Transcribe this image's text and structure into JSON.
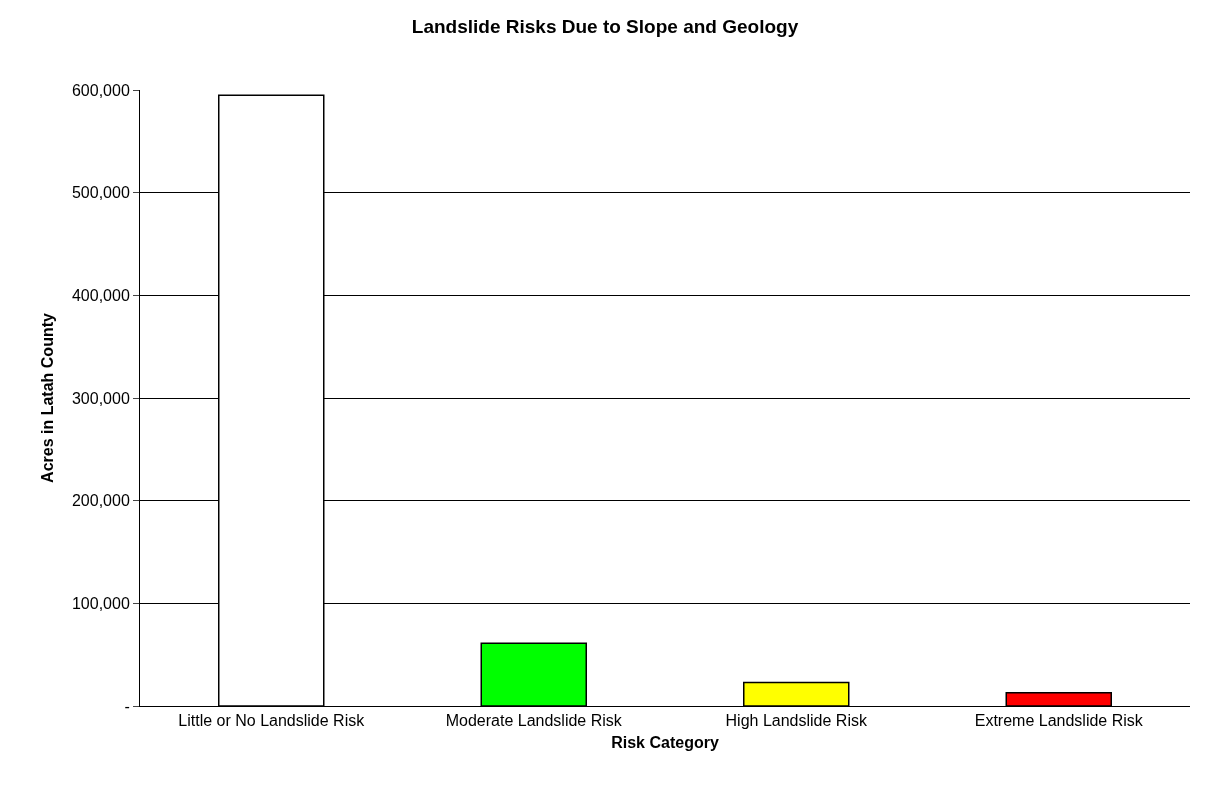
{
  "chart_data": {
    "type": "bar",
    "title": "Landslide Risks Due to Slope and Geology",
    "xlabel": "Risk Category",
    "ylabel": "Acres in Latah County",
    "categories": [
      "Little or No Landslide Risk",
      "Moderate Landslide Risk",
      "High Landslide Risk",
      "Extreme Landslide Risk"
    ],
    "values": [
      595000,
      61000,
      23000,
      13000
    ],
    "colors": [
      "#ffffff",
      "#00ff00",
      "#ffff00",
      "#ff0000"
    ],
    "ylim": [
      0,
      600000
    ],
    "yticks": [
      {
        "value": 0,
        "label": "-"
      },
      {
        "value": 100000,
        "label": "100,000"
      },
      {
        "value": 200000,
        "label": "200,000"
      },
      {
        "value": 300000,
        "label": "300,000"
      },
      {
        "value": 400000,
        "label": "400,000"
      },
      {
        "value": 500000,
        "label": "500,000"
      },
      {
        "value": 600000,
        "label": "600,000"
      }
    ],
    "grid": "y"
  }
}
